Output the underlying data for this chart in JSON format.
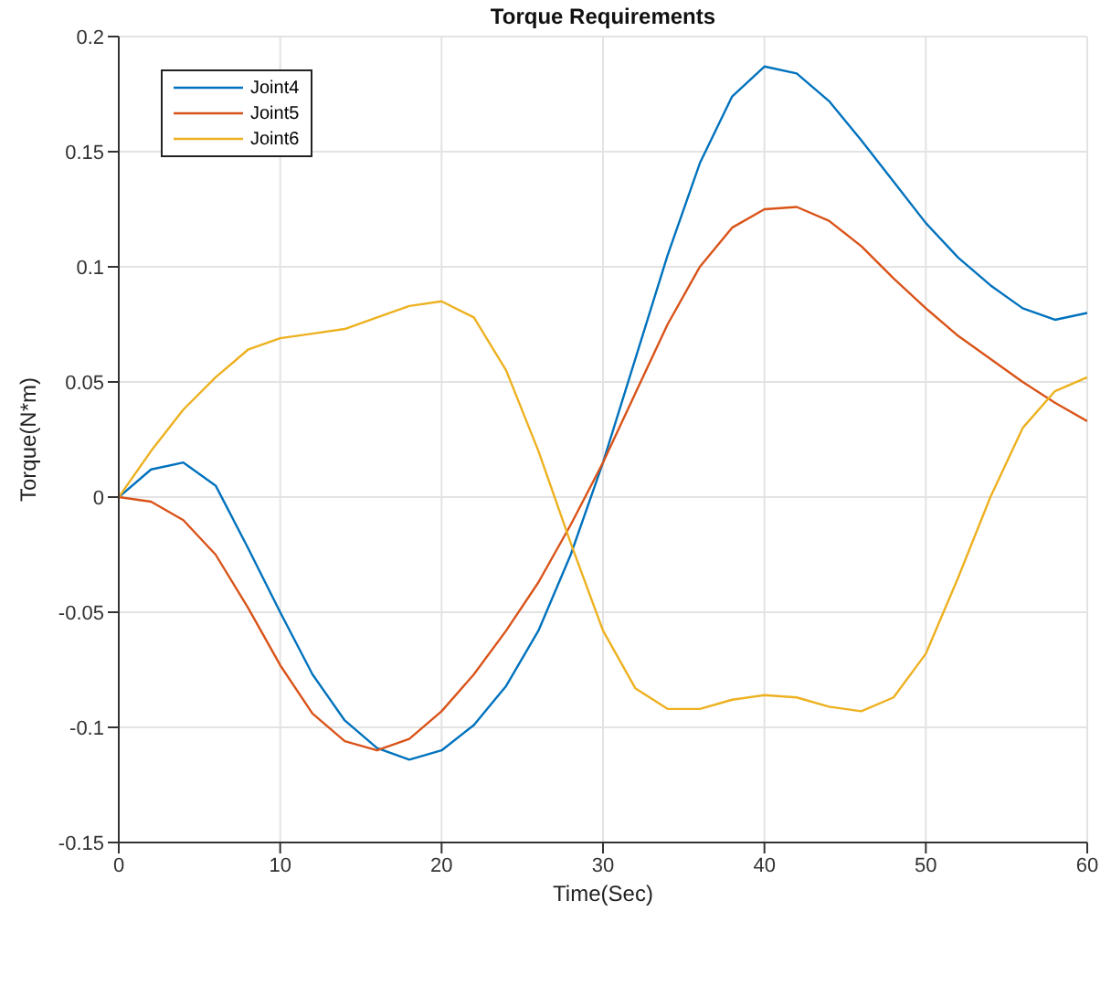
{
  "chart_data": {
    "type": "line",
    "title": "Torque Requirements",
    "xlabel": "Time(Sec)",
    "ylabel": "Torque(N*m)",
    "x": [
      0,
      2,
      4,
      6,
      8,
      10,
      12,
      14,
      16,
      18,
      20,
      22,
      24,
      26,
      28,
      30,
      32,
      34,
      36,
      38,
      40,
      42,
      44,
      46,
      48,
      50,
      52,
      54,
      56,
      58,
      60
    ],
    "series": [
      {
        "name": "Joint4",
        "color": "#0072bd",
        "values": [
          0,
          0.012,
          0.015,
          0.005,
          -0.022,
          -0.05,
          -0.077,
          -0.097,
          -0.109,
          -0.114,
          -0.11,
          -0.099,
          -0.082,
          -0.058,
          -0.025,
          0.015,
          0.06,
          0.105,
          0.145,
          0.174,
          0.187,
          0.184,
          0.172,
          0.155,
          0.137,
          0.119,
          0.104,
          0.092,
          0.082,
          0.077,
          0.08
        ]
      },
      {
        "name": "Joint5",
        "color": "#d95319",
        "values": [
          0,
          -0.002,
          -0.01,
          -0.025,
          -0.048,
          -0.073,
          -0.094,
          -0.106,
          -0.11,
          -0.105,
          -0.093,
          -0.077,
          -0.058,
          -0.037,
          -0.012,
          0.015,
          0.045,
          0.075,
          0.1,
          0.117,
          0.125,
          0.126,
          0.12,
          0.109,
          0.095,
          0.082,
          0.07,
          0.06,
          0.05,
          0.041,
          0.033
        ]
      },
      {
        "name": "Joint6",
        "color": "#edb120",
        "values": [
          0,
          0.02,
          0.038,
          0.052,
          0.064,
          0.069,
          0.071,
          0.073,
          0.078,
          0.083,
          0.085,
          0.078,
          0.055,
          0.02,
          -0.02,
          -0.058,
          -0.083,
          -0.092,
          -0.092,
          -0.088,
          -0.086,
          -0.087,
          -0.091,
          -0.093,
          -0.087,
          -0.068,
          -0.035,
          0,
          0.03,
          0.046,
          0.052
        ]
      }
    ],
    "xlim": [
      0,
      60
    ],
    "xticks": [
      0,
      10,
      20,
      30,
      40,
      50,
      60
    ],
    "ylim": [
      -0.15,
      0.2
    ],
    "yticks": [
      -0.15,
      -0.1,
      -0.05,
      0,
      0.05,
      0.1,
      0.15,
      0.2
    ],
    "grid": true,
    "legend": "top left",
    "marker": "none",
    "line_style": "solid"
  }
}
